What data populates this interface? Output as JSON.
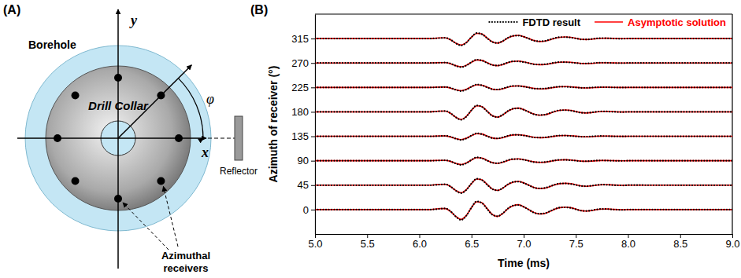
{
  "chart_data": {
    "type": "line",
    "title": "(B)",
    "x_label": "Time (ms)",
    "y_label": "Azimuth of receiver (°)",
    "x": [
      5,
      5.5,
      6,
      6.1,
      6.15,
      6.2,
      6.25,
      6.3,
      6.35,
      6.4,
      6.45,
      6.5,
      6.55,
      6.6,
      6.65,
      6.7,
      6.75,
      6.8,
      6.85,
      6.9,
      6.95,
      7,
      7.05,
      7.1,
      7.15,
      7.2,
      7.25,
      7.3,
      7.35,
      7.4,
      7.45,
      7.5,
      7.55,
      7.6,
      7.65,
      7.7,
      7.75,
      7.8,
      7.85,
      7.9,
      7.95,
      8,
      8.5,
      9
    ],
    "xlim": [
      5,
      9
    ],
    "xticks": [
      {
        "value": 5,
        "label": "5.0"
      },
      5.5,
      {
        "value": 6,
        "label": "6.0"
      },
      6.5,
      {
        "value": 7,
        "label": "7.0"
      },
      7.5,
      {
        "value": 8,
        "label": "8.0"
      },
      8.5,
      {
        "value": 9,
        "label": "9.0"
      }
    ],
    "ylim": [
      -45,
      360
    ],
    "yticks": [
      0,
      45,
      90,
      135,
      180,
      225,
      270,
      315
    ],
    "legend": "upper right",
    "series": [
      {
        "name": "FDTD result",
        "color": "#000000",
        "line_style": "dotted",
        "values": [
          [
            0,
            0,
            0,
            0,
            0.6,
            1.5,
            2.1,
            -3.2,
            -12.9,
            -19,
            -11.4,
            3.9,
            15.2,
            12.1,
            1.2,
            -9.4,
            -12.2,
            -6.8,
            2.2,
            7.5,
            8.4,
            5.1,
            -0.3,
            -5.8,
            -7.6,
            -6.9,
            -3.2,
            1.2,
            3.9,
            4.2,
            3.1,
            0.6,
            -2.0,
            -2.5,
            -1.5,
            0.3,
            1.1,
            1.0,
            0.3,
            -0.2,
            -0.5,
            0.1,
            0,
            0
          ],
          [
            45,
            45,
            45,
            45,
            45.5,
            46.2,
            46.6,
            42.5,
            34.9,
            30.4,
            36.2,
            48.1,
            56.8,
            54.4,
            45.9,
            37.7,
            35.5,
            39.8,
            46.7,
            50.9,
            51.5,
            48.9,
            44.7,
            40.4,
            39.1,
            39.7,
            42.6,
            46.0,
            48.1,
            48.2,
            47.3,
            45.4,
            43.4,
            43.1,
            43.9,
            45.3,
            45.9,
            45.7,
            45.2,
            44.8,
            44.6,
            45.1,
            45,
            45
          ],
          [
            90,
            90,
            90,
            90,
            90.2,
            90.5,
            90.9,
            88.9,
            84.8,
            82.4,
            85.4,
            91.7,
            96.2,
            94.5,
            90.2,
            86.2,
            85.4,
            87.6,
            91.0,
            93.1,
            93.0,
            91.8,
            89.7,
            87.5,
            87.3,
            87.5,
            89.0,
            90.7,
            91.7,
            91.5,
            90.9,
            90.1,
            89.1,
            89.2,
            89.6,
            90.3,
            90.6,
            90.3,
            90.0,
            89.8,
            89.8,
            90.1,
            90,
            90
          ],
          [
            135,
            135,
            135,
            135,
            135.1,
            135.4,
            135.8,
            134.1,
            130.5,
            128.4,
            131.0,
            136.5,
            140.4,
            138.8,
            135.1,
            131.7,
            131.1,
            133.0,
            135.9,
            137.7,
            137.5,
            136.5,
            134.7,
            132.8,
            132.7,
            132.9,
            134.2,
            135.6,
            136.5,
            136.2,
            135.7,
            135.0,
            134.2,
            134.3,
            134.7,
            135.3,
            135.5,
            135.3,
            135.0,
            134.8,
            134.8,
            135.1,
            135,
            135
          ],
          [
            180,
            180,
            180,
            180,
            180.5,
            181.2,
            181.6,
            177.5,
            169.9,
            165.4,
            171.2,
            183.1,
            191.8,
            189.4,
            180.9,
            172.7,
            170.5,
            174.8,
            181.7,
            185.9,
            186.5,
            183.9,
            179.7,
            175.4,
            174.1,
            174.7,
            177.6,
            181.0,
            183.1,
            183.2,
            182.3,
            180.4,
            178.4,
            178.1,
            178.9,
            180.3,
            180.9,
            180.7,
            180.2,
            179.8,
            179.6,
            180.1,
            180,
            180
          ],
          [
            225,
            225,
            225,
            225,
            225.1,
            225.4,
            225.8,
            224.1,
            220.5,
            218.4,
            221.0,
            226.5,
            230.4,
            228.8,
            225.1,
            221.7,
            221.1,
            223.0,
            225.9,
            227.7,
            227.5,
            226.5,
            224.7,
            222.8,
            222.7,
            222.9,
            224.2,
            225.6,
            226.5,
            226.2,
            225.7,
            225.0,
            224.2,
            224.3,
            224.7,
            225.3,
            225.5,
            225.3,
            225.0,
            224.8,
            224.8,
            225.1,
            225,
            225
          ],
          [
            270,
            270,
            270,
            270,
            270.2,
            270.5,
            270.9,
            268.9,
            264.8,
            262.4,
            265.4,
            271.7,
            276.2,
            274.5,
            270.2,
            266.2,
            265.4,
            267.6,
            271.0,
            273.1,
            273.0,
            271.8,
            269.7,
            267.5,
            267.3,
            267.5,
            269.0,
            270.7,
            271.7,
            271.5,
            270.9,
            270.1,
            269.1,
            269.2,
            269.6,
            270.3,
            270.6,
            270.3,
            270.0,
            269.8,
            269.8,
            270.1,
            270,
            270
          ],
          [
            315,
            315,
            315,
            315,
            315.4,
            316.0,
            316.4,
            312.9,
            306.3,
            302.4,
            307.4,
            317.7,
            325.2,
            323.0,
            315.7,
            308.7,
            306.9,
            310.6,
            316.5,
            320.1,
            320.5,
            318.3,
            314.7,
            311.0,
            310.0,
            310.5,
            313.0,
            315.9,
            317.7,
            317.7,
            316.9,
            315.3,
            313.6,
            313.4,
            314.1,
            315.3,
            315.8,
            315.6,
            315.2,
            314.8,
            314.7,
            315.1,
            315,
            315
          ]
        ]
      },
      {
        "name": "Asymptotic solution",
        "color": "#ff0000",
        "line_style": "solid",
        "values": [
          [
            0,
            0,
            0,
            0,
            0.9,
            1.8,
            1.8,
            -3.6,
            -12.6,
            -18,
            -10.8,
            3.6,
            14.4,
            12.6,
            1.8,
            -9,
            -12.6,
            -7.2,
            1.8,
            7.2,
            9,
            5.4,
            0,
            -5.4,
            -8.1,
            -7.2,
            -3.6,
            0.9,
            3.6,
            4.5,
            3.6,
            0.9,
            -1.8,
            -2.7,
            -1.8,
            0,
            0.9,
            1.1,
            0.5,
            0,
            -0.4,
            0,
            0,
            0
          ],
          [
            45,
            45,
            45,
            45,
            45.7,
            46.4,
            46.4,
            42.2,
            35.2,
            31,
            36.6,
            47.8,
            56.2,
            54.8,
            46.4,
            38,
            35.2,
            39.4,
            46.4,
            50.6,
            52,
            49.2,
            45,
            40.8,
            38.7,
            39.4,
            42.2,
            45.7,
            47.8,
            48.5,
            47.8,
            45.7,
            43.6,
            42.9,
            43.6,
            45,
            45.7,
            45.8,
            45.4,
            45,
            44.7,
            45,
            45,
            45
          ],
          [
            90,
            90,
            90,
            90,
            90.4,
            90.7,
            90.7,
            88.6,
            85.1,
            83,
            85.8,
            91.4,
            95.6,
            94.9,
            90.7,
            86.5,
            85.1,
            87.2,
            90.7,
            92.8,
            93.5,
            92.1,
            90,
            87.9,
            86.9,
            87.2,
            88.6,
            90.4,
            91.4,
            91.8,
            91.4,
            90.4,
            89.3,
            89,
            89.3,
            90,
            90.4,
            90.4,
            90.2,
            90,
            89.9,
            90,
            90,
            90
          ],
          [
            135,
            135,
            135,
            135,
            135.3,
            135.6,
            135.6,
            133.8,
            130.8,
            129,
            131.4,
            136.2,
            139.8,
            139.2,
            135.6,
            132,
            130.8,
            132.6,
            135.6,
            137.4,
            138,
            136.8,
            135,
            133.2,
            132.3,
            132.6,
            133.8,
            135.3,
            136.2,
            136.5,
            136.2,
            135.3,
            134.4,
            134.1,
            134.4,
            135,
            135.3,
            135.4,
            135.2,
            135,
            134.9,
            135,
            135,
            135
          ],
          [
            180,
            180,
            180,
            180,
            180.7,
            181.4,
            181.4,
            177.2,
            170.2,
            166,
            171.6,
            182.8,
            191.2,
            189.8,
            181.4,
            173,
            170.2,
            174.4,
            181.4,
            185.6,
            187,
            184.2,
            180,
            175.8,
            173.7,
            174.4,
            177.2,
            180.7,
            182.8,
            183.5,
            182.8,
            180.7,
            178.6,
            177.9,
            178.6,
            180,
            180.7,
            180.8,
            180.4,
            180,
            179.7,
            180,
            180,
            180
          ],
          [
            225,
            225,
            225,
            225,
            225.3,
            225.6,
            225.6,
            223.8,
            220.8,
            219,
            221.4,
            226.2,
            229.8,
            229.2,
            225.6,
            222,
            220.8,
            222.6,
            225.6,
            227.4,
            228,
            226.8,
            225,
            223.2,
            222.3,
            222.6,
            223.8,
            225.3,
            226.2,
            226.5,
            226.2,
            225.3,
            224.4,
            224.1,
            224.4,
            225,
            225.3,
            225.4,
            225.2,
            225,
            224.9,
            225,
            225,
            225
          ],
          [
            270,
            270,
            270,
            270,
            270.4,
            270.7,
            270.7,
            268.6,
            265.1,
            263,
            265.8,
            271.4,
            275.6,
            274.9,
            270.7,
            266.5,
            265.1,
            267.2,
            270.7,
            272.8,
            273.5,
            272.1,
            270,
            267.9,
            266.9,
            267.2,
            268.6,
            270.4,
            271.4,
            271.8,
            271.4,
            270.4,
            269.3,
            269,
            269.3,
            270,
            270.4,
            270.4,
            270.2,
            270,
            269.9,
            270,
            270,
            270
          ],
          [
            315,
            315,
            315,
            315,
            315.6,
            316.2,
            316.2,
            312.6,
            306.6,
            303,
            307.8,
            317.4,
            324.6,
            323.4,
            316.2,
            309,
            306.6,
            310.2,
            316.2,
            319.8,
            321,
            318.6,
            315,
            311.4,
            309.6,
            310.2,
            312.6,
            315.6,
            317.4,
            318,
            317.4,
            315.6,
            313.8,
            313.2,
            313.8,
            315,
            315.6,
            315.7,
            315.4,
            315,
            314.8,
            315,
            315,
            315
          ]
        ]
      }
    ]
  },
  "diagram": {
    "panel_label": "(A)",
    "borehole": "Borehole",
    "collar": "Drill Collar",
    "x_axis": "x",
    "y_axis": "y",
    "angle": "φ",
    "reflector": "Reflector",
    "receivers": [
      "Azimuthal",
      "receivers"
    ]
  }
}
